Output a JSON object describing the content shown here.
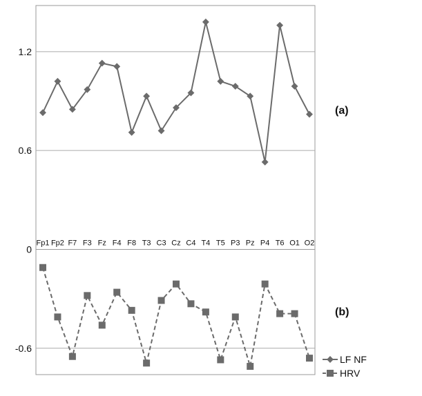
{
  "chart_data": {
    "type": "line",
    "categories": [
      "Fp1",
      "Fp2",
      "F7",
      "F3",
      "Fz",
      "F4",
      "F8",
      "T3",
      "C3",
      "Cz",
      "C4",
      "T4",
      "T5",
      "P3",
      "Pz",
      "P4",
      "T6",
      "O1",
      "O2"
    ],
    "series": [
      {
        "name": "LF NF",
        "style": "solid",
        "marker": "diamond",
        "values": [
          0.83,
          1.02,
          0.85,
          0.97,
          1.13,
          1.11,
          0.71,
          0.93,
          0.72,
          0.86,
          0.95,
          1.38,
          1.02,
          0.99,
          0.93,
          0.53,
          1.36,
          0.99,
          0.82
        ]
      },
      {
        "name": "HRV",
        "style": "dashed",
        "marker": "square",
        "values": [
          -0.11,
          -0.41,
          -0.65,
          -0.28,
          -0.46,
          -0.26,
          -0.37,
          -0.69,
          -0.31,
          -0.21,
          -0.33,
          -0.38,
          -0.67,
          -0.41,
          -0.71,
          -0.21,
          -0.39,
          -0.39,
          -0.66
        ]
      }
    ],
    "panels": [
      {
        "label": "(a)",
        "ticks": [
          "1.2",
          "0.6"
        ]
      },
      {
        "label": "(b)",
        "ticks": [
          "-0.6"
        ]
      }
    ],
    "zero_label": "0",
    "ylim": [
      -0.76,
      1.48
    ],
    "grid": true,
    "legend": "bottom-right",
    "colors": {
      "line": "#6b6b6b",
      "grid": "#aaaaaa",
      "frame": "#9a9a9a"
    }
  }
}
